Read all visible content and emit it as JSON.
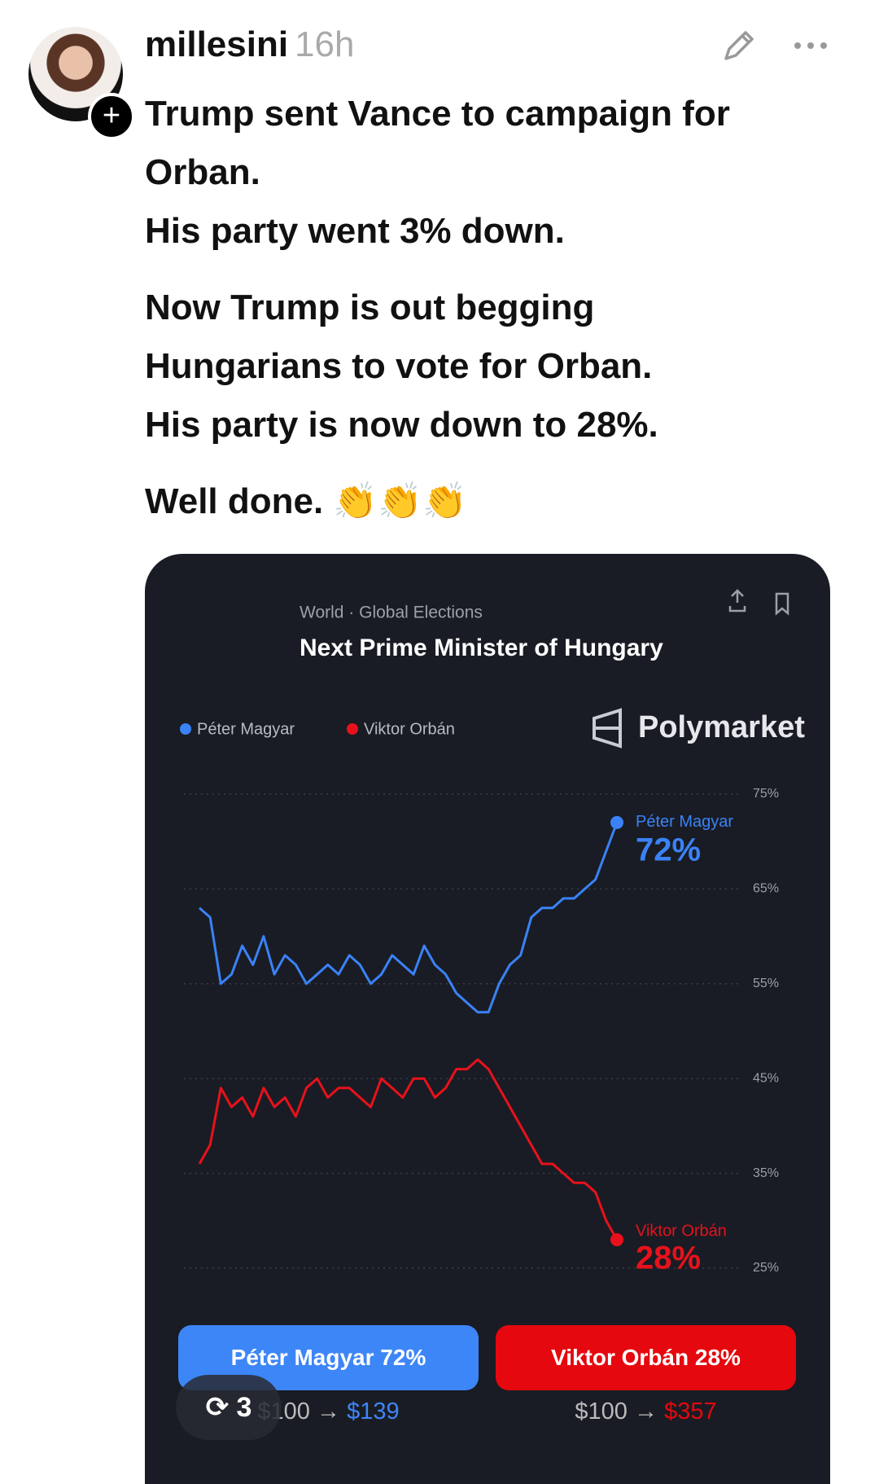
{
  "post": {
    "username": "millesini",
    "time": "16h",
    "paragraphs": [
      [
        "Trump sent Vance to campaign for Orban.",
        "His party went 3% down."
      ],
      [
        "Now Trump is out begging",
        "Hungarians to vote for Orban.",
        "His party is now down to 28%."
      ],
      [
        "Well done. 👏👏👏"
      ]
    ],
    "repost_count": "3"
  },
  "card": {
    "breadcrumb": "World · Global Elections",
    "brand": "Polymarket",
    "buttons": [
      {
        "name": "Péter Magyar",
        "percent": "72%",
        "stake": "$100",
        "payout": "$139"
      },
      {
        "name": "Viktor Orbán",
        "percent": "28%",
        "stake": "$100",
        "payout": "$357"
      }
    ]
  },
  "chart_data": {
    "type": "line",
    "title": "Next Prime Minister of Hungary",
    "categories": [
      null,
      null,
      null,
      null,
      null,
      null,
      null,
      null,
      null,
      null,
      null,
      null,
      null,
      null,
      null,
      null,
      null,
      null,
      null,
      null,
      null,
      null,
      null,
      null,
      null,
      null,
      null,
      null,
      null,
      null,
      null,
      null,
      null,
      null,
      null,
      null,
      null,
      null,
      null,
      null
    ],
    "series": [
      {
        "name": "Péter Magyar",
        "color": "#3a82f6",
        "end_value_label": "72%",
        "values": [
          63,
          62,
          55,
          56,
          59,
          57,
          60,
          56,
          58,
          57,
          55,
          56,
          57,
          56,
          58,
          57,
          55,
          56,
          58,
          57,
          56,
          59,
          57,
          56,
          54,
          53,
          52,
          52,
          55,
          57,
          58,
          62,
          63,
          63,
          64,
          64,
          65,
          66,
          69,
          72
        ]
      },
      {
        "name": "Viktor Orbán",
        "color": "#e8111b",
        "end_value_label": "28%",
        "values": [
          36,
          38,
          44,
          42,
          43,
          41,
          44,
          42,
          43,
          41,
          44,
          45,
          43,
          44,
          44,
          43,
          42,
          45,
          44,
          43,
          45,
          45,
          43,
          44,
          46,
          46,
          47,
          46,
          44,
          42,
          40,
          38,
          36,
          36,
          35,
          34,
          34,
          33,
          30,
          28
        ]
      }
    ],
    "ylim": [
      25,
      75
    ],
    "yticks": [
      {
        "value": 25,
        "label": "25%"
      },
      {
        "value": 35,
        "label": "35%"
      },
      {
        "value": 45,
        "label": "45%"
      },
      {
        "value": 55,
        "label": "55%"
      },
      {
        "value": 65,
        "label": "65%"
      },
      {
        "value": 75,
        "label": "75%"
      }
    ],
    "grid": true,
    "legend": "top-left"
  }
}
